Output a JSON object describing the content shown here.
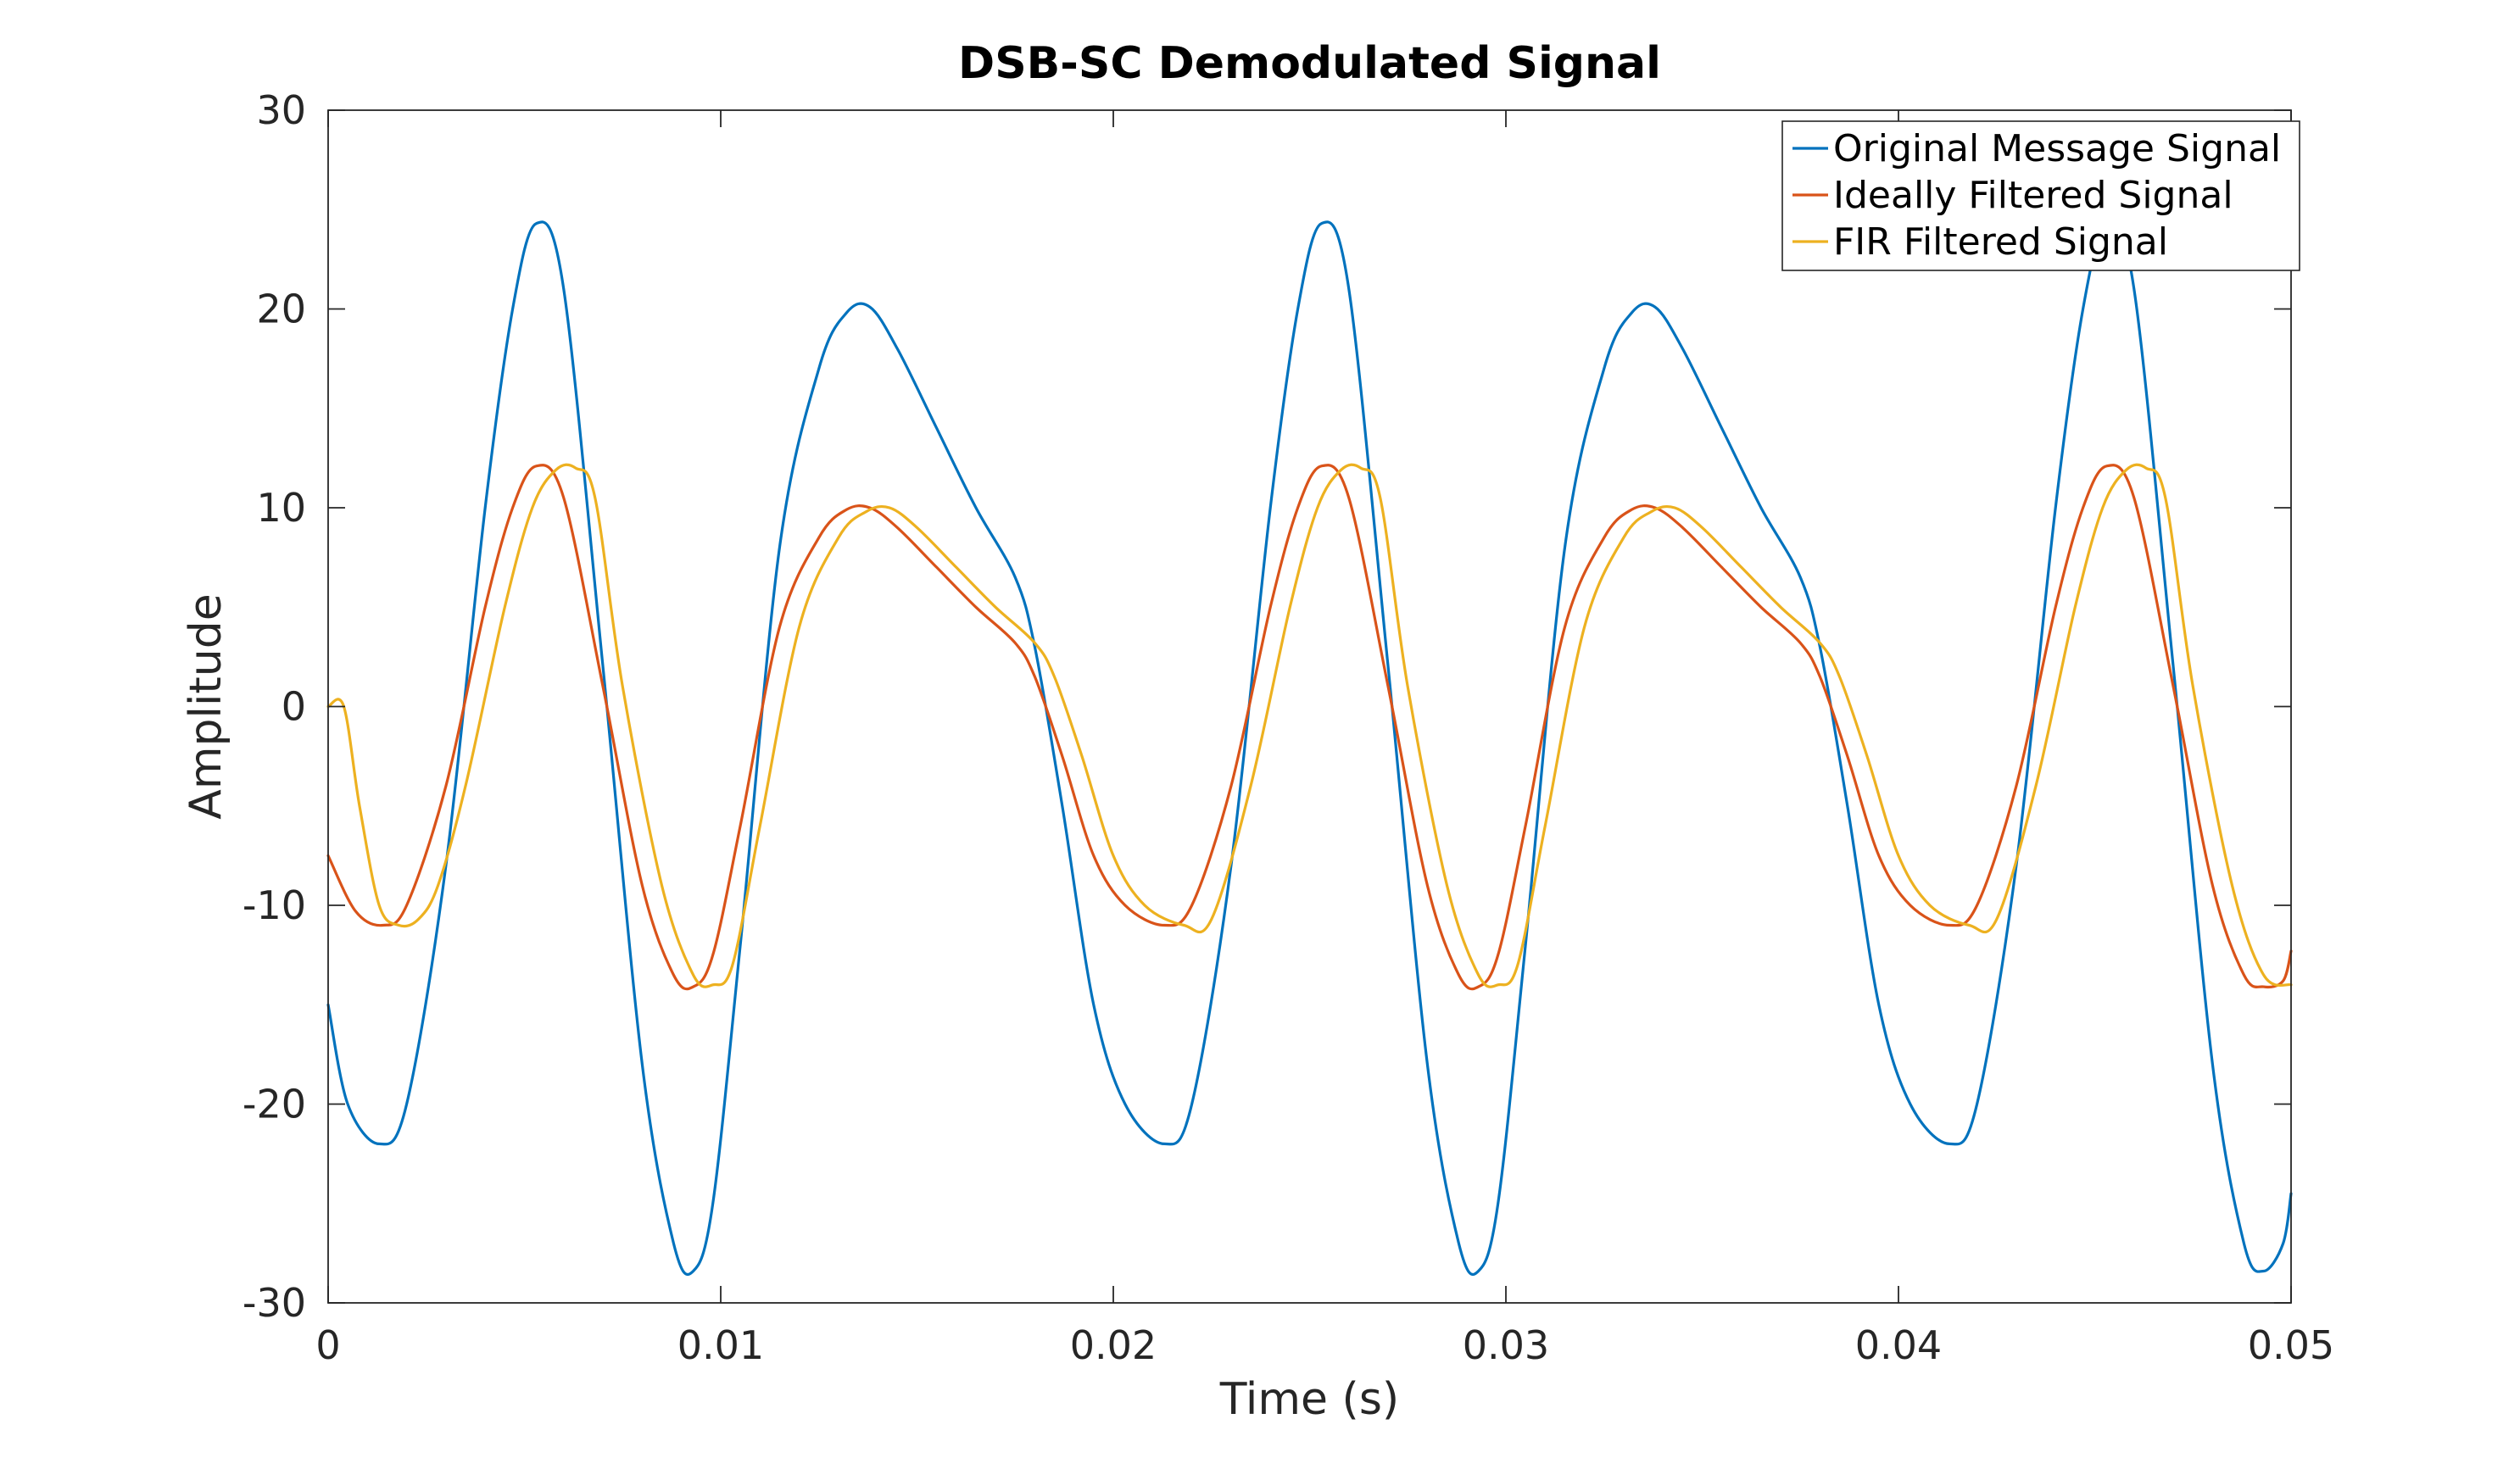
{
  "chart_data": {
    "type": "line",
    "title": "DSB-SC Demodulated Signal",
    "xlabel": "Time (s)",
    "ylabel": "Amplitude",
    "xlim": [
      0,
      0.05
    ],
    "ylim": [
      -30,
      30
    ],
    "xticks": [
      0,
      0.01,
      0.02,
      0.03,
      0.04,
      0.05
    ],
    "xtick_labels": [
      "0",
      "0.01",
      "0.02",
      "0.03",
      "0.04",
      "0.05"
    ],
    "yticks": [
      30,
      20,
      10,
      0,
      -10,
      -20,
      -30
    ],
    "ytick_labels": [
      "30",
      "20",
      "10",
      "0",
      "-10",
      "-20",
      "-30"
    ],
    "grid": false,
    "legend_position": "top-right",
    "series": [
      {
        "name": "Original Message Signal",
        "color": "#0072BD",
        "x": [
          0,
          0.0005,
          0.0013,
          0.002,
          0.003,
          0.004,
          0.0047,
          0.0053,
          0.006,
          0.007,
          0.008,
          0.0088,
          0.0093,
          0.0098,
          0.0105,
          0.0115,
          0.0125,
          0.0132,
          0.0138,
          0.0145,
          0.0155,
          0.0165,
          0.0175,
          0.018,
          0.0187,
          0.0195,
          0.0203,
          0.0213,
          0.022,
          0.023,
          0.024,
          0.0247,
          0.0253,
          0.026,
          0.027,
          0.028,
          0.0288,
          0.0293,
          0.0298,
          0.0305,
          0.0315,
          0.0325,
          0.0332,
          0.0338,
          0.0345,
          0.0355,
          0.0365,
          0.0375,
          0.038,
          0.0387,
          0.0395,
          0.0403,
          0.0413,
          0.042,
          0.043,
          0.044,
          0.0447,
          0.0453,
          0.046,
          0.047,
          0.048,
          0.0488,
          0.0493,
          0.0498,
          0.05
        ],
        "values": [
          -15,
          -20,
          -22,
          -20,
          -8,
          10,
          20,
          24.3,
          21,
          2,
          -18,
          -27,
          -28.4,
          -25,
          -12,
          8,
          17,
          19.8,
          20.1,
          18,
          14,
          10,
          6.5,
          3,
          -5,
          -15,
          -20,
          -22,
          -20,
          -8,
          10,
          20,
          24.3,
          21,
          2,
          -18,
          -27,
          -28.4,
          -25,
          -12,
          8,
          17,
          19.8,
          20.1,
          18,
          14,
          10,
          6.5,
          3,
          -5,
          -15,
          -20,
          -22,
          -20,
          -8,
          10,
          20,
          24.3,
          21,
          2,
          -18,
          -27,
          -28.4,
          -27,
          -24.5
        ]
      },
      {
        "name": "Ideally Filtered Signal",
        "color": "#D95319",
        "x": [
          0,
          0.0007,
          0.0014,
          0.002,
          0.003,
          0.004,
          0.0047,
          0.0053,
          0.006,
          0.007,
          0.008,
          0.0088,
          0.0093,
          0.0098,
          0.0105,
          0.0115,
          0.0125,
          0.0132,
          0.0138,
          0.0145,
          0.0155,
          0.0165,
          0.0175,
          0.018,
          0.0187,
          0.0195,
          0.0203,
          0.0213,
          0.022,
          0.023,
          0.024,
          0.0247,
          0.0253,
          0.026,
          0.027,
          0.028,
          0.0288,
          0.0293,
          0.0298,
          0.0305,
          0.0315,
          0.0325,
          0.0332,
          0.0338,
          0.0345,
          0.0355,
          0.0365,
          0.0375,
          0.038,
          0.0387,
          0.0395,
          0.0403,
          0.0413,
          0.042,
          0.043,
          0.044,
          0.0447,
          0.0453,
          0.046,
          0.047,
          0.048,
          0.0488,
          0.0493,
          0.0498,
          0.05
        ],
        "values": [
          -7.5,
          -10.3,
          -11,
          -10,
          -4,
          5,
          10,
          12.1,
          10.5,
          1,
          -9,
          -13.5,
          -14.1,
          -12.5,
          -6,
          4,
          8.5,
          9.9,
          10,
          9,
          7,
          5,
          3.2,
          1.5,
          -2.5,
          -7.5,
          -10,
          -11,
          -10,
          -4,
          5,
          10,
          12.1,
          10.5,
          1,
          -9,
          -13.5,
          -14.1,
          -12.5,
          -6,
          4,
          8.5,
          9.9,
          10,
          9,
          7,
          5,
          3.2,
          1.5,
          -2.5,
          -7.5,
          -10,
          -11,
          -10,
          -4,
          5,
          10,
          12.1,
          10.5,
          1,
          -9,
          -13.5,
          -14.1,
          -13.8,
          -12.3
        ]
      },
      {
        "name": "FIR Filtered Signal",
        "color": "#EDB120",
        "x": [
          0,
          0.0004,
          0.0008,
          0.0013,
          0.0018,
          0.0023,
          0.0028,
          0.0035,
          0.0045,
          0.0052,
          0.0058,
          0.0063,
          0.0068,
          0.0075,
          0.0085,
          0.0093,
          0.0098,
          0.0103,
          0.011,
          0.012,
          0.013,
          0.0137,
          0.0143,
          0.015,
          0.016,
          0.017,
          0.018,
          0.0185,
          0.0192,
          0.02,
          0.0208,
          0.0218,
          0.0225,
          0.0235,
          0.0245,
          0.0252,
          0.0258,
          0.0263,
          0.0268,
          0.0275,
          0.0285,
          0.0293,
          0.0298,
          0.0303,
          0.031,
          0.032,
          0.033,
          0.0337,
          0.0343,
          0.035,
          0.036,
          0.037,
          0.038,
          0.0385,
          0.0392,
          0.04,
          0.0408,
          0.0418,
          0.0425,
          0.0435,
          0.0445,
          0.0452,
          0.0458,
          0.0463,
          0.0468,
          0.0475,
          0.0485,
          0.0493,
          0.05
        ],
        "values": [
          0,
          0,
          -5,
          -10,
          -11,
          -10.7,
          -9,
          -4,
          5,
          10,
          11.9,
          12,
          10.5,
          1,
          -9,
          -13.5,
          -14,
          -13,
          -6,
          4,
          8.5,
          9.8,
          10,
          9,
          7,
          5,
          3.2,
          1.5,
          -2.5,
          -7.5,
          -10,
          -11,
          -10.7,
          -4,
          5,
          10,
          11.9,
          12,
          10.5,
          1,
          -9,
          -13.5,
          -14,
          -13,
          -6,
          4,
          8.5,
          9.8,
          10,
          9,
          7,
          5,
          3.2,
          1.5,
          -2.5,
          -7.5,
          -10,
          -11,
          -10.7,
          -4,
          5,
          10,
          11.9,
          12,
          10.5,
          1,
          -9,
          -13.5,
          -14
        ]
      }
    ]
  }
}
